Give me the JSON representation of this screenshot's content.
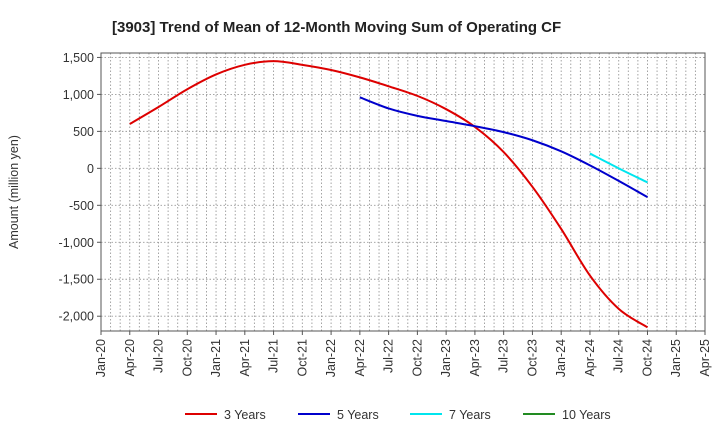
{
  "chart_data": {
    "type": "line",
    "title": "[3903]  Trend of Mean of 12-Month Moving Sum of Operating CF",
    "xlabel": "",
    "ylabel": "Amount (million yen)",
    "ylim": [
      -2200,
      1560
    ],
    "yticks": [
      1500,
      1000,
      500,
      0,
      -500,
      -1000,
      -1500,
      -2000
    ],
    "ytick_labels": [
      "1,500",
      "1,000",
      "500",
      "0",
      "-500",
      "-1,000",
      "-1,500",
      "-2,000"
    ],
    "xticks": [
      "Jan-20",
      "Apr-20",
      "Jul-20",
      "Oct-20",
      "Jan-21",
      "Apr-21",
      "Jul-21",
      "Oct-21",
      "Jan-22",
      "Apr-22",
      "Jul-22",
      "Oct-22",
      "Jan-23",
      "Apr-23",
      "Jul-23",
      "Oct-23",
      "Jan-24",
      "Apr-24",
      "Jul-24",
      "Oct-24",
      "Jan-25",
      "Apr-25"
    ],
    "grid": true,
    "legend_position": "bottom",
    "series": [
      {
        "name": "3 Years",
        "color": "#dd0000",
        "x": [
          "Apr-20",
          "Jul-20",
          "Oct-20",
          "Jan-21",
          "Apr-21",
          "Jul-21",
          "Oct-21",
          "Jan-22",
          "Apr-22",
          "Jul-22",
          "Oct-22",
          "Jan-23",
          "Apr-23",
          "Jul-23",
          "Oct-23",
          "Jan-24",
          "Apr-24",
          "Jul-24",
          "Oct-24"
        ],
        "values": [
          600,
          830,
          1070,
          1270,
          1400,
          1450,
          1400,
          1330,
          1230,
          1110,
          980,
          800,
          560,
          220,
          -250,
          -820,
          -1450,
          -1900,
          -2150
        ]
      },
      {
        "name": "5 Years",
        "color": "#0000cc",
        "x": [
          "Apr-22",
          "Jul-22",
          "Oct-22",
          "Jan-23",
          "Apr-23",
          "Jul-23",
          "Oct-23",
          "Jan-24",
          "Apr-24",
          "Jul-24",
          "Oct-24"
        ],
        "values": [
          960,
          810,
          710,
          640,
          570,
          490,
          380,
          230,
          40,
          -170,
          -390
        ]
      },
      {
        "name": "7 Years",
        "color": "#00e5ee",
        "x": [
          "Apr-24",
          "Jul-24",
          "Oct-24"
        ],
        "values": [
          200,
          0,
          -190
        ]
      },
      {
        "name": "10 Years",
        "color": "#228b22",
        "x": [],
        "values": []
      }
    ]
  }
}
